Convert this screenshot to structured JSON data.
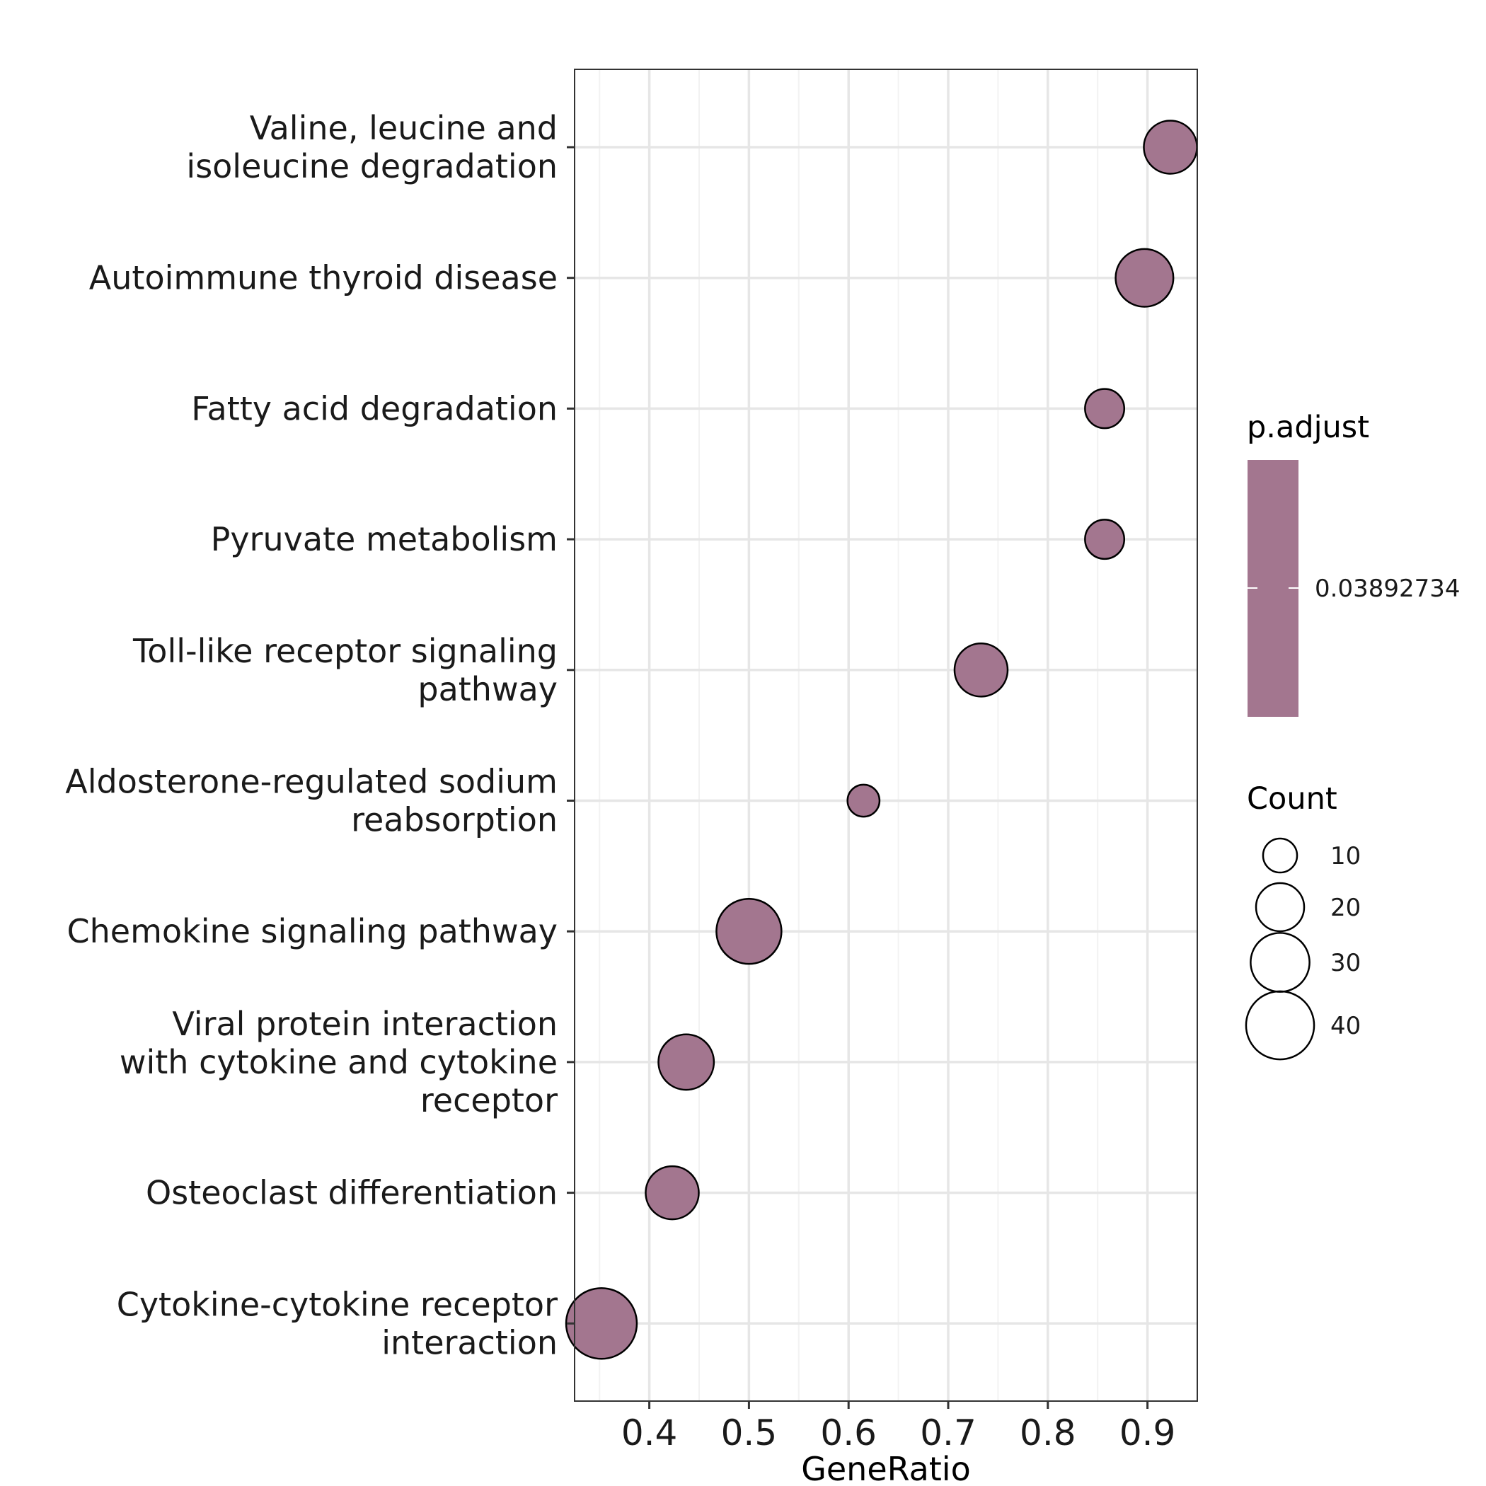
{
  "chart_data": {
    "type": "scatter",
    "xlabel": "GeneRatio",
    "ylabel": "",
    "xlim": [
      0.325,
      0.95
    ],
    "x_ticks": [
      "0.4",
      "0.5",
      "0.6",
      "0.7",
      "0.8",
      "0.9"
    ],
    "categories": [
      "Valine, leucine and\nisoleucine degradation",
      "Autoimmune thyroid disease",
      "Fatty acid degradation",
      "Pyruvate metabolism",
      "Toll-like receptor signaling\npathway",
      "Aldosterone-regulated sodium\nreabsorption",
      "Chemokine signaling pathway",
      "Viral protein interaction\nwith cytokine and cytokine\nreceptor",
      "Osteoclast differentiation",
      "Cytokine-cytokine receptor\ninteraction"
    ],
    "points": [
      {
        "x": 0.923,
        "count": 22
      },
      {
        "x": 0.897,
        "count": 26
      },
      {
        "x": 0.857,
        "count": 12
      },
      {
        "x": 0.857,
        "count": 12
      },
      {
        "x": 0.733,
        "count": 22
      },
      {
        "x": 0.615,
        "count": 8
      },
      {
        "x": 0.5,
        "count": 33
      },
      {
        "x": 0.437,
        "count": 24
      },
      {
        "x": 0.423,
        "count": 22
      },
      {
        "x": 0.352,
        "count": 39
      }
    ],
    "point_color": "#a3768f",
    "grid": true,
    "legend": {
      "color_title": "p.adjust",
      "color_value_label": "0.03892734",
      "size_title": "Count",
      "size_breaks": [
        10,
        20,
        30,
        40
      ],
      "size_labels": [
        "10",
        "20",
        "30",
        "40"
      ],
      "placement": "right"
    }
  }
}
